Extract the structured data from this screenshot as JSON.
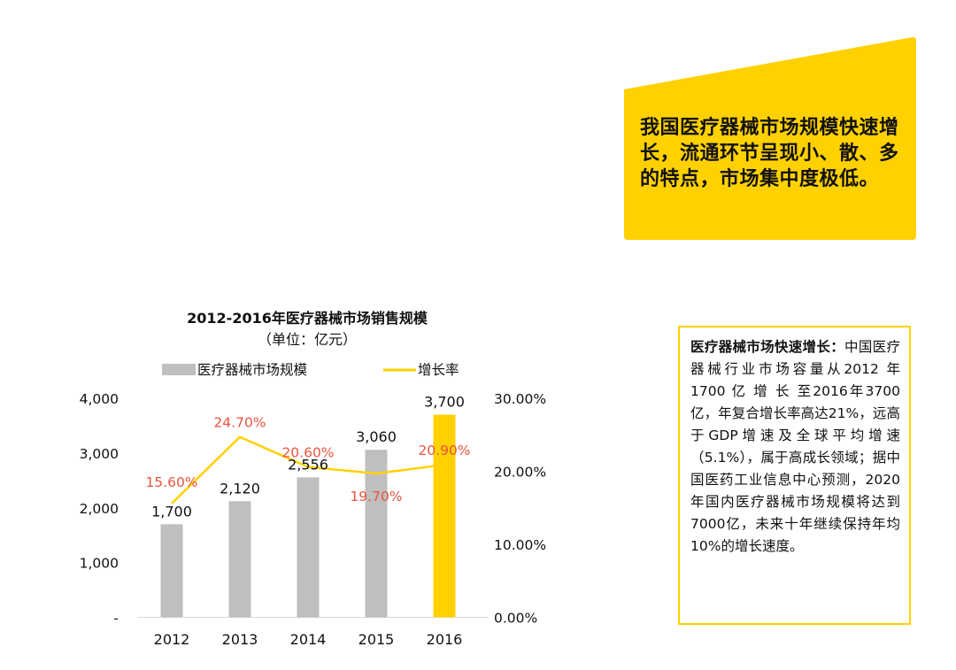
{
  "colors": {
    "accent": "#FFD100",
    "bar_gray": "#BFBFBF",
    "growth_label": "#E8553E",
    "text": "#111111"
  },
  "callout": {
    "text": "我国医疗器械市场规模快速增长，流通环节呈现小、散、多的特点，市场集中度极低。"
  },
  "description": {
    "title": "医疗器械市场快速增长：",
    "body": "中国医疗器械行业市场容量从2012 年 1700 亿 增 长 至2016年3700亿，年复合增长率高达21%，远高于GDP增速及全球平均增速（5.1%），属于高成长领域；据中国医药工业信息中心预测，2020年国内医疗器械市场规模将达到7000亿，未来十年继续保持年均10%的增长速度。"
  },
  "chart_data": {
    "type": "bar",
    "title": "2012-2016年医疗器械市场销售规模",
    "subtitle": "（单位：亿元）",
    "categories": [
      "2012",
      "2013",
      "2014",
      "2015",
      "2016"
    ],
    "series": [
      {
        "name": "医疗器械市场规模",
        "type": "bar",
        "values": [
          1700,
          2120,
          2556,
          3060,
          3700
        ],
        "value_labels": [
          "1,700",
          "2,120",
          "2,556",
          "3,060",
          "3,700"
        ],
        "colors": [
          "#BFBFBF",
          "#BFBFBF",
          "#BFBFBF",
          "#BFBFBF",
          "#FFD100"
        ],
        "axis": "left"
      },
      {
        "name": "增长率",
        "type": "line",
        "values": [
          15.6,
          24.7,
          20.6,
          19.7,
          20.9
        ],
        "value_labels": [
          "15.60%",
          "24.70%",
          "20.60%",
          "19.70%",
          "20.90%"
        ],
        "color": "#FFD100",
        "axis": "right"
      }
    ],
    "y_left": {
      "range": [
        0,
        4000
      ],
      "ticks": [
        0,
        1000,
        2000,
        3000,
        4000
      ],
      "tick_labels": [
        "-",
        "1,000",
        "2,000",
        "3,000",
        "4,000"
      ]
    },
    "y_right": {
      "range": [
        0,
        30
      ],
      "ticks": [
        0,
        10,
        20,
        30
      ],
      "tick_labels": [
        "0.00%",
        "10.00%",
        "20.00%",
        "30.00%"
      ]
    },
    "grid": false,
    "legend_position": "top"
  }
}
